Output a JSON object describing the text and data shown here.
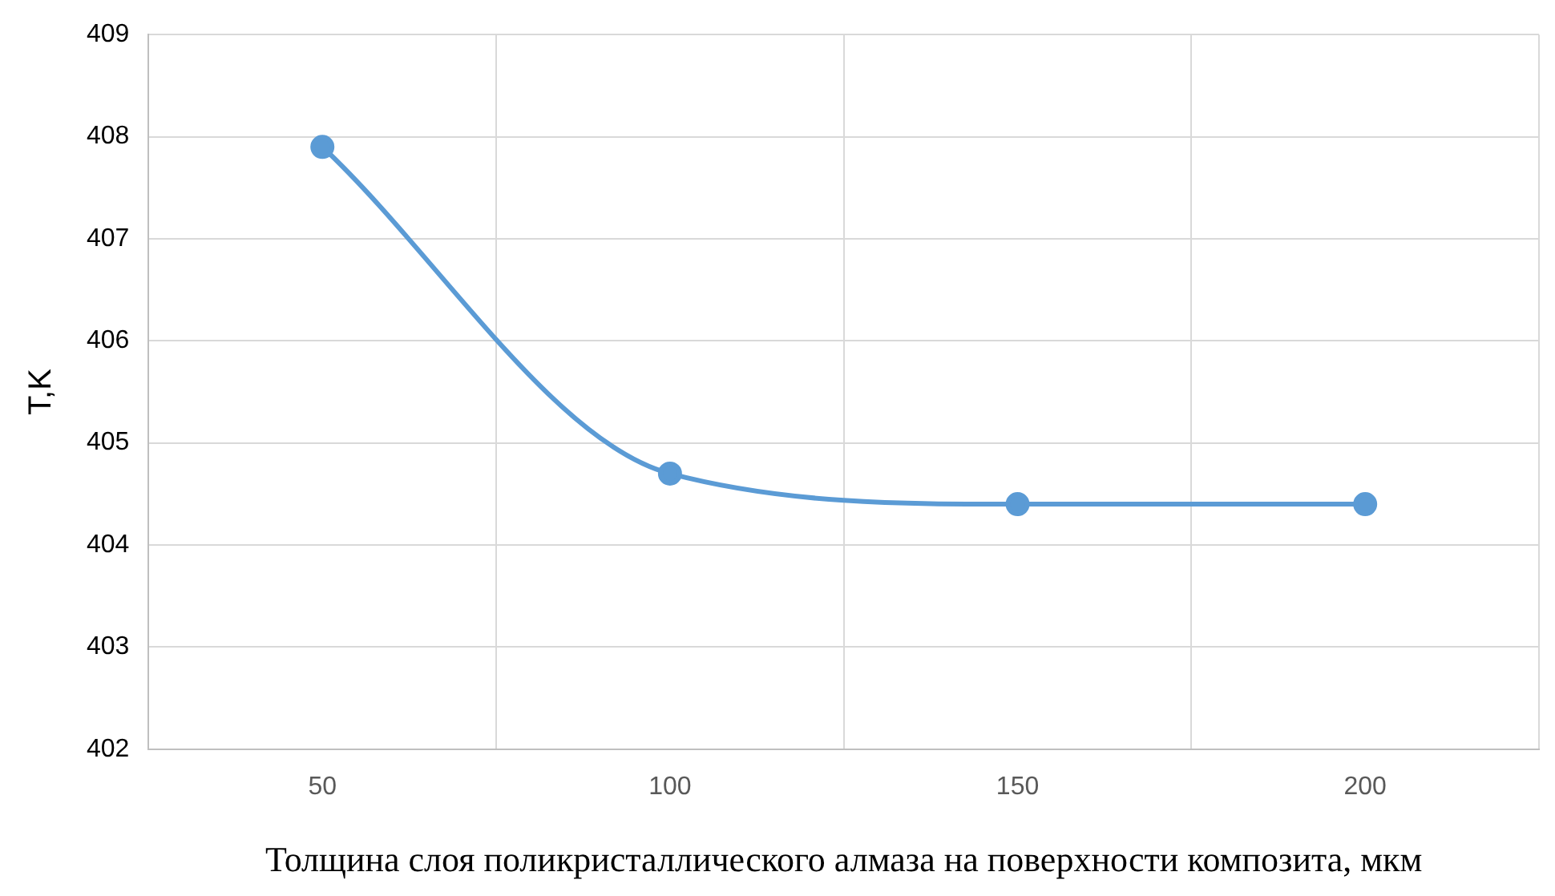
{
  "chart_data": {
    "type": "line",
    "xlabel": "Толщина слоя поликристаллического алмаза на поверхности композита, мкм",
    "ylabel": "T,K",
    "categories": [
      "50",
      "100",
      "150",
      "200"
    ],
    "series": [
      {
        "color": "#5b9bd5",
        "values": [
          407.9,
          404.7,
          404.4,
          404.4
        ]
      }
    ],
    "ylim": [
      402,
      409
    ],
    "yticks": [
      402,
      403,
      404,
      405,
      406,
      407,
      408,
      409
    ],
    "grid": true,
    "legend": false,
    "marker": "circle",
    "line_style": "solid"
  }
}
